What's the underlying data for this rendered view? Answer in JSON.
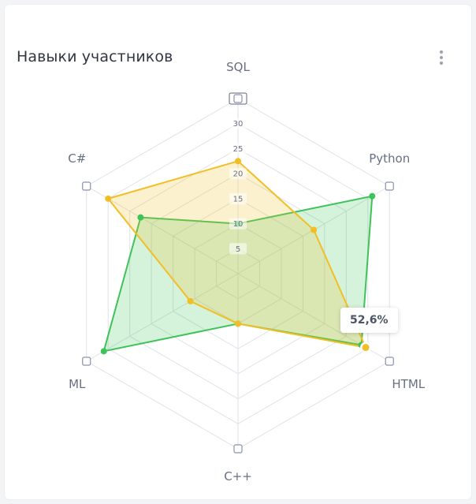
{
  "card": {
    "title": "Навыки участников"
  },
  "colors": {
    "green": "#3ec25a",
    "green_fill": "rgba(62,194,90,0.22)",
    "yellow": "#f2be26",
    "yellow_fill": "rgba(242,190,38,0.22)",
    "grid": "#dfe2e7",
    "axis_marker": "#8892ad"
  },
  "tooltip": {
    "value": "52,6%"
  },
  "chart_data": {
    "type": "radar",
    "title": "Навыки участников",
    "categories": [
      "SQL",
      "Python",
      "HTML",
      "C++",
      "ML",
      "C#"
    ],
    "r_ticks": [
      "5",
      "10",
      "15",
      "20",
      "25",
      "30",
      "35"
    ],
    "rlim": [
      0,
      35
    ],
    "series": [
      {
        "values": [
          10,
          31,
          28.5,
          10,
          31,
          22.5
        ]
      },
      {
        "values": [
          22.5,
          17.5,
          29.5,
          10,
          11,
          30
        ]
      }
    ],
    "highlighted_point": {
      "series": 1,
      "category": "HTML",
      "label": "52,6%"
    },
    "grid": true
  }
}
